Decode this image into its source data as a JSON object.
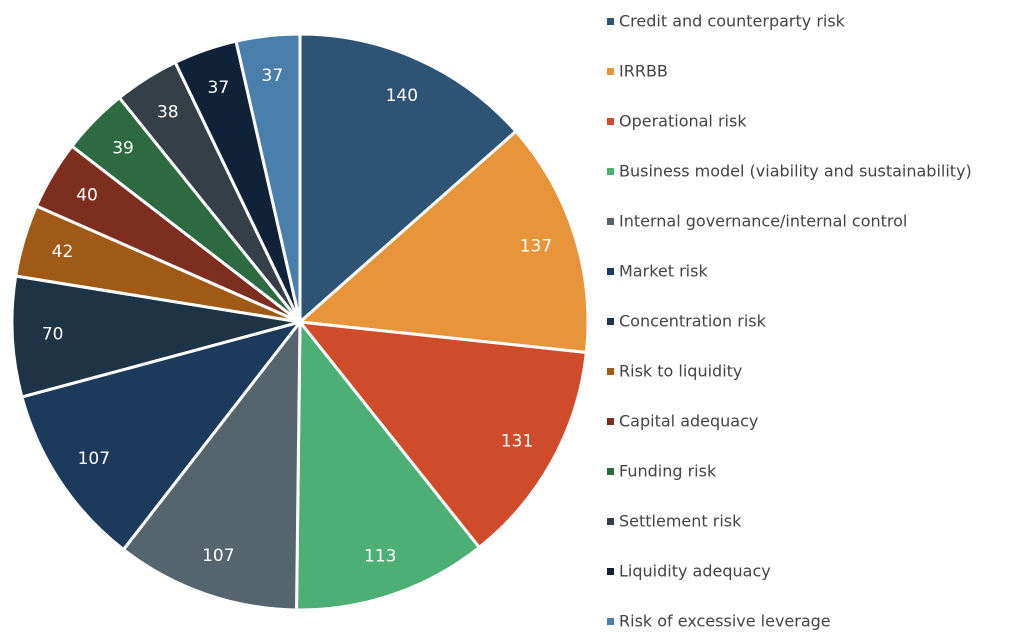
{
  "chart_data": {
    "type": "pie",
    "categories": [
      "Credit and counterparty risk",
      "IRRBB",
      "Operational risk",
      "Business model (viability and sustainability)",
      "Internal governance/internal control",
      "Market risk",
      "Concentration risk",
      "Risk to liquidity",
      "Capital adequacy",
      "Funding risk",
      "Settlement risk",
      "Liquidity adequacy",
      "Risk of excessive leverage"
    ],
    "values": [
      140,
      137,
      131,
      113,
      107,
      107,
      70,
      42,
      40,
      39,
      38,
      37,
      37
    ],
    "colors": [
      "#2e5475",
      "#e8943a",
      "#d04b2a",
      "#4caf74",
      "#56656d",
      "#1c3a5c",
      "#1f3347",
      "#a05a16",
      "#7e2e1e",
      "#2d6a42",
      "#343f48",
      "#0f2238",
      "#4a7fab"
    ],
    "legend": "right"
  }
}
